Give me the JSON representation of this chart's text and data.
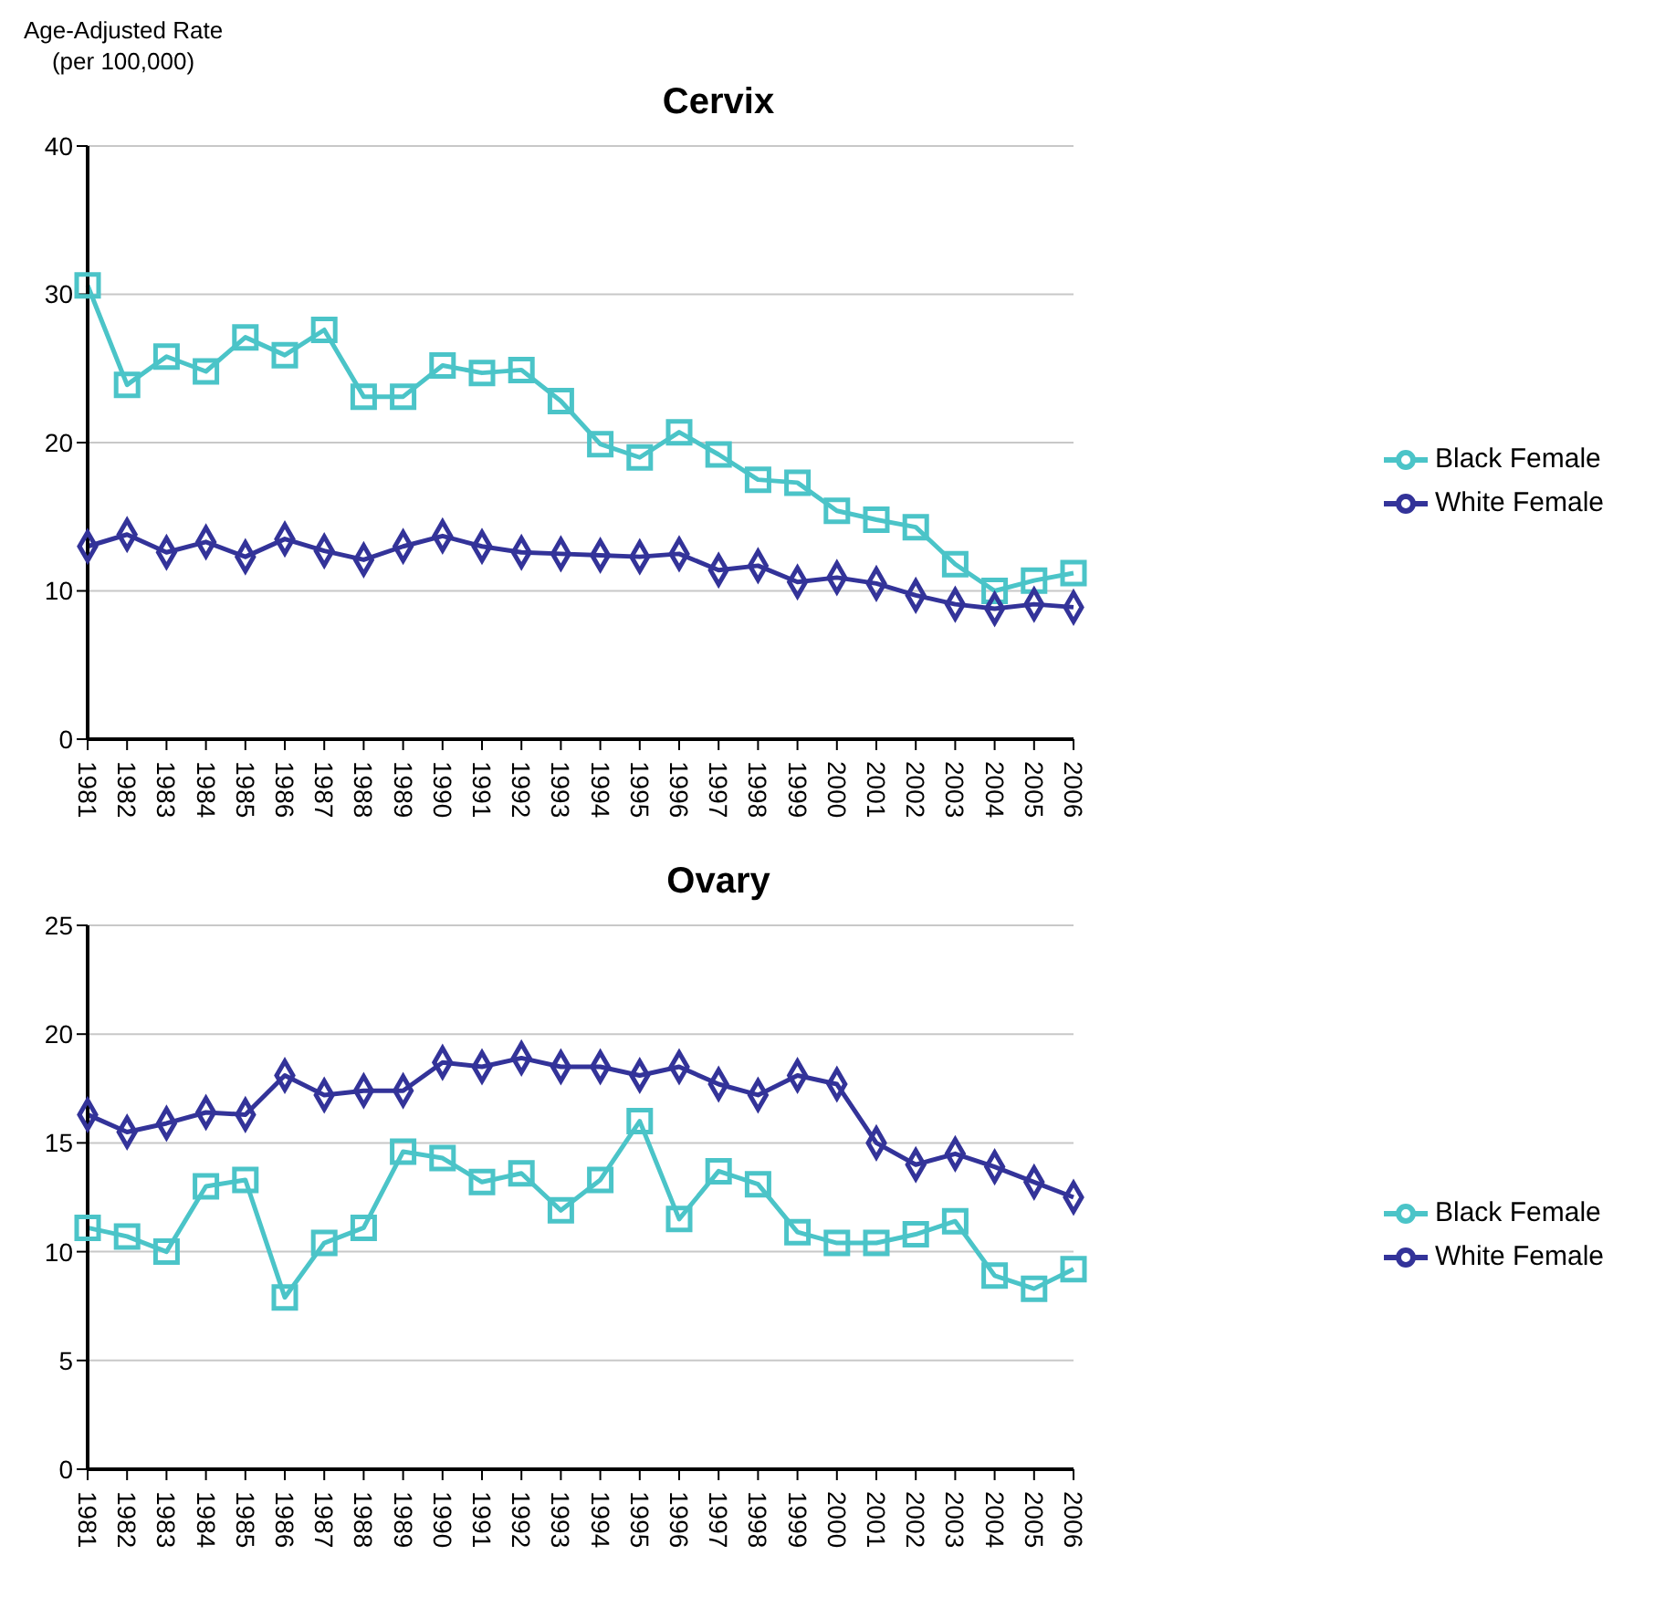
{
  "chart_data": [
    {
      "type": "line",
      "title": "Cervix",
      "ylabel": "Age-Adjusted Rate (per 100,000)",
      "categories": [
        "1981",
        "1982",
        "1983",
        "1984",
        "1985",
        "1986",
        "1987",
        "1988",
        "1989",
        "1990",
        "1991",
        "1992",
        "1993",
        "1994",
        "1995",
        "1996",
        "1997",
        "1998",
        "1999",
        "2000",
        "2001",
        "2002",
        "2003",
        "2004",
        "2005",
        "2006"
      ],
      "series": [
        {
          "name": "Black Female",
          "color": "#4bc4c8",
          "marker": "square",
          "values": [
            30.6,
            23.9,
            25.8,
            24.8,
            27.1,
            25.9,
            27.6,
            23.1,
            23.1,
            25.2,
            24.7,
            24.9,
            22.8,
            19.9,
            19.0,
            20.7,
            19.2,
            17.5,
            17.3,
            15.4,
            14.8,
            14.3,
            11.8,
            10.0,
            10.7,
            11.2
          ]
        },
        {
          "name": "White Female",
          "color": "#333399",
          "marker": "diamond",
          "values": [
            13.0,
            13.8,
            12.6,
            13.3,
            12.3,
            13.5,
            12.7,
            12.1,
            13.0,
            13.7,
            13.0,
            12.6,
            12.5,
            12.4,
            12.3,
            12.5,
            11.4,
            11.7,
            10.6,
            10.9,
            10.5,
            9.7,
            9.1,
            8.8,
            9.1,
            8.9
          ]
        }
      ],
      "ylim": [
        0,
        40
      ],
      "yticks": [
        0,
        10,
        20,
        30,
        40
      ],
      "grid": "y",
      "legend": "right",
      "line_style": "solid"
    },
    {
      "type": "line",
      "title": "Ovary",
      "categories": [
        "1981",
        "1982",
        "1983",
        "1984",
        "1985",
        "1986",
        "1987",
        "1988",
        "1989",
        "1990",
        "1991",
        "1992",
        "1993",
        "1994",
        "1995",
        "1996",
        "1997",
        "1998",
        "1999",
        "2000",
        "2001",
        "2002",
        "2003",
        "2004",
        "2005",
        "2006"
      ],
      "series": [
        {
          "name": "Black Female",
          "color": "#4bc4c8",
          "marker": "square",
          "values": [
            11.1,
            10.7,
            10.0,
            13.0,
            13.3,
            7.9,
            10.4,
            11.1,
            14.6,
            14.3,
            13.2,
            13.6,
            11.9,
            13.3,
            16.0,
            11.5,
            13.7,
            13.1,
            10.9,
            10.4,
            10.4,
            10.8,
            11.4,
            8.9,
            8.3,
            9.2
          ]
        },
        {
          "name": "White Female",
          "color": "#333399",
          "marker": "diamond",
          "values": [
            16.3,
            15.5,
            15.9,
            16.4,
            16.3,
            18.1,
            17.2,
            17.4,
            17.4,
            18.7,
            18.5,
            18.9,
            18.5,
            18.5,
            18.1,
            18.5,
            17.7,
            17.2,
            18.1,
            17.7,
            15.0,
            14.0,
            14.5,
            13.9,
            13.2,
            12.5
          ]
        }
      ],
      "ylim": [
        0,
        25
      ],
      "yticks": [
        0,
        5,
        10,
        15,
        20,
        25
      ],
      "grid": "y",
      "legend": "right",
      "line_style": "solid"
    }
  ]
}
